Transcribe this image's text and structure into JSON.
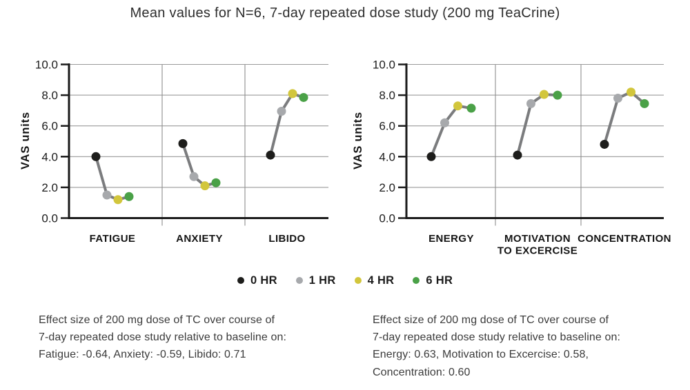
{
  "title": "Mean values for N=6, 7-day repeated dose study (200 mg TeaCrine)",
  "colors": {
    "marker_0hr": "#1d1d1b",
    "marker_1hr": "#a7a9ac",
    "marker_4hr": "#d2c63c",
    "marker_6hr": "#4aa147",
    "connector_line": "#7b7c7e",
    "gridline": "#999999",
    "axis": "#1a1a1a"
  },
  "chart_data": [
    {
      "type": "line",
      "panel": "left",
      "ylabel": "VAS units",
      "ylim": [
        0,
        10
      ],
      "yticks": [
        0,
        2,
        4,
        6,
        8,
        10
      ],
      "ytick_labels": [
        "0.0",
        "2.0",
        "4.0",
        "6.0",
        "8.0",
        "10.0"
      ],
      "grid": true,
      "categories": [
        "FATIGUE",
        "ANXIETY",
        "LIBIDO"
      ],
      "series": [
        {
          "name": "0 HR",
          "color": "#1d1d1b",
          "values": [
            4.0,
            4.85,
            4.1
          ]
        },
        {
          "name": "1 HR",
          "color": "#a7a9ac",
          "values": [
            1.5,
            2.7,
            6.95
          ]
        },
        {
          "name": "4 HR",
          "color": "#d2c63c",
          "values": [
            1.2,
            2.1,
            8.1
          ]
        },
        {
          "name": "6 HR",
          "color": "#4aa147",
          "values": [
            1.4,
            2.3,
            7.85
          ]
        }
      ]
    },
    {
      "type": "line",
      "panel": "right",
      "ylabel": "VAS units",
      "ylim": [
        0,
        10
      ],
      "yticks": [
        0,
        2,
        4,
        6,
        8,
        10
      ],
      "ytick_labels": [
        "0.0",
        "2.0",
        "4.0",
        "6.0",
        "8.0",
        "10.0"
      ],
      "grid": true,
      "categories": [
        "ENERGY",
        "MOTIVATION\nTO EXCERCISE",
        "CONCENTRATION"
      ],
      "series": [
        {
          "name": "0 HR",
          "color": "#1d1d1b",
          "values": [
            4.0,
            4.1,
            4.8
          ]
        },
        {
          "name": "1 HR",
          "color": "#a7a9ac",
          "values": [
            6.2,
            7.45,
            7.8
          ]
        },
        {
          "name": "4 HR",
          "color": "#d2c63c",
          "values": [
            7.3,
            8.05,
            8.2
          ]
        },
        {
          "name": "6 HR",
          "color": "#4aa147",
          "values": [
            7.15,
            8.0,
            7.45
          ]
        }
      ]
    }
  ],
  "legend": {
    "items": [
      {
        "label": "0 HR",
        "color": "#1d1d1b"
      },
      {
        "label": "1 HR",
        "color": "#a7a9ac"
      },
      {
        "label": "4 HR",
        "color": "#d2c63c"
      },
      {
        "label": "6 HR",
        "color": "#4aa147"
      }
    ]
  },
  "footnotes": {
    "left": [
      "Effect size of 200 mg dose of TC over course of",
      "7-day repeated dose study relative to baseline on:",
      "Fatigue: -0.64, Anxiety: -0.59, Libido: 0.71"
    ],
    "right": [
      "Effect size of 200 mg dose of TC over course of",
      "7-day repeated dose study relative to baseline on:",
      "Energy: 0.63, Motivation to Excercise: 0.58,",
      "Concentration: 0.60"
    ]
  }
}
